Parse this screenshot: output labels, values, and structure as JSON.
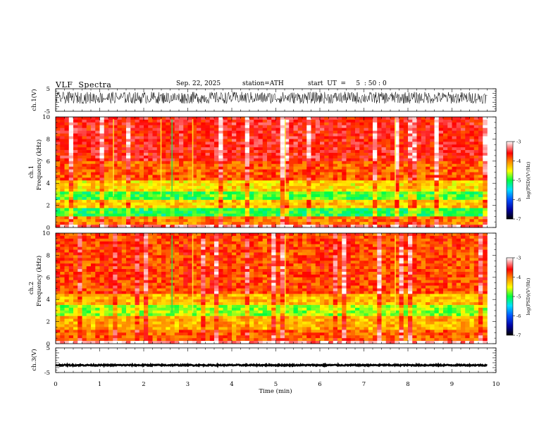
{
  "header": {
    "title": "VLF  Spectra",
    "date": "Sep. 22, 2025",
    "station": "station=ATH",
    "start": "start  UT  =     5  : 50 : 0"
  },
  "chart_data": [
    {
      "type": "line",
      "panel": "ch1-waveform",
      "ylabel": "ch.1(V)",
      "ylim": [
        -5,
        5
      ],
      "yticks": [
        "5",
        "-5"
      ],
      "xlim": [
        0,
        10
      ],
      "description": "noisy time-series, about 0 to 3 V, through 9.8 min"
    },
    {
      "type": "heatmap",
      "panel": "ch1-spectrogram",
      "ylabel_line1": "ch.1",
      "ylabel_line2": "Frequency  (kHz)",
      "ylim": [
        0,
        10
      ],
      "yticks": [
        "0",
        "2",
        "4",
        "6",
        "8",
        "10"
      ],
      "xlim": [
        0,
        10
      ],
      "data_end_min": 9.8,
      "colorbar": {
        "label": "log(PSD)(V²/Hz)",
        "range": [
          -7,
          -3
        ],
        "ticks": [
          "-3",
          "-4",
          "-5",
          "-6",
          "-7"
        ]
      },
      "bands_kHz": [
        {
          "from": 0.0,
          "to": 0.3,
          "level": -3.3
        },
        {
          "from": 0.3,
          "to": 0.9,
          "level": -4.0
        },
        {
          "from": 0.9,
          "to": 1.1,
          "level": -3.3
        },
        {
          "from": 1.1,
          "to": 1.7,
          "level": -5.0
        },
        {
          "from": 1.7,
          "to": 2.5,
          "level": -4.3
        },
        {
          "from": 2.5,
          "to": 3.3,
          "level": -4.9
        },
        {
          "from": 3.3,
          "to": 4.3,
          "level": -4.4
        },
        {
          "from": 4.3,
          "to": 6.0,
          "level": -3.9
        },
        {
          "from": 6.0,
          "to": 10.0,
          "level": -3.6
        }
      ],
      "impulsive_lines_min": [
        2.63,
        2.38,
        5.2,
        7.7,
        1.3,
        3.1
      ]
    },
    {
      "type": "heatmap",
      "panel": "ch2-spectrogram",
      "ylabel_line1": "ch.2",
      "ylabel_line2": "Frequency  (kHz)",
      "ylim": [
        0,
        10
      ],
      "yticks": [
        "0",
        "2",
        "4",
        "6",
        "8",
        "10"
      ],
      "xlim": [
        0,
        10
      ],
      "data_end_min": 9.8,
      "colorbar": {
        "label": "log(PSD)(V²/Hz)",
        "range": [
          -7,
          -3
        ],
        "ticks": [
          "-3",
          "-4",
          "-5",
          "-6",
          "-7"
        ]
      },
      "bands_kHz": [
        {
          "from": 0.0,
          "to": 0.3,
          "level": -3.2
        },
        {
          "from": 0.3,
          "to": 1.2,
          "level": -3.9
        },
        {
          "from": 1.2,
          "to": 2.6,
          "level": -4.2
        },
        {
          "from": 2.6,
          "to": 3.4,
          "level": -4.7
        },
        {
          "from": 3.4,
          "to": 4.6,
          "level": -4.2
        },
        {
          "from": 4.6,
          "to": 10.0,
          "level": -3.8
        }
      ],
      "impulsive_lines_min": [
        2.63,
        3.1,
        5.2,
        7.7
      ]
    },
    {
      "type": "line",
      "panel": "ch3-waveform",
      "ylabel": "ch.3(V)",
      "ylim": [
        -5,
        5
      ],
      "yticks": [
        "5",
        "-5"
      ],
      "xlim": [
        0,
        10
      ],
      "xlabel": "Time  (min)",
      "xticks": [
        "0",
        "1",
        "2",
        "3",
        "4",
        "5",
        "6",
        "7",
        "8",
        "9",
        "10"
      ],
      "description": "nearly flat trace at about -2 V"
    }
  ]
}
